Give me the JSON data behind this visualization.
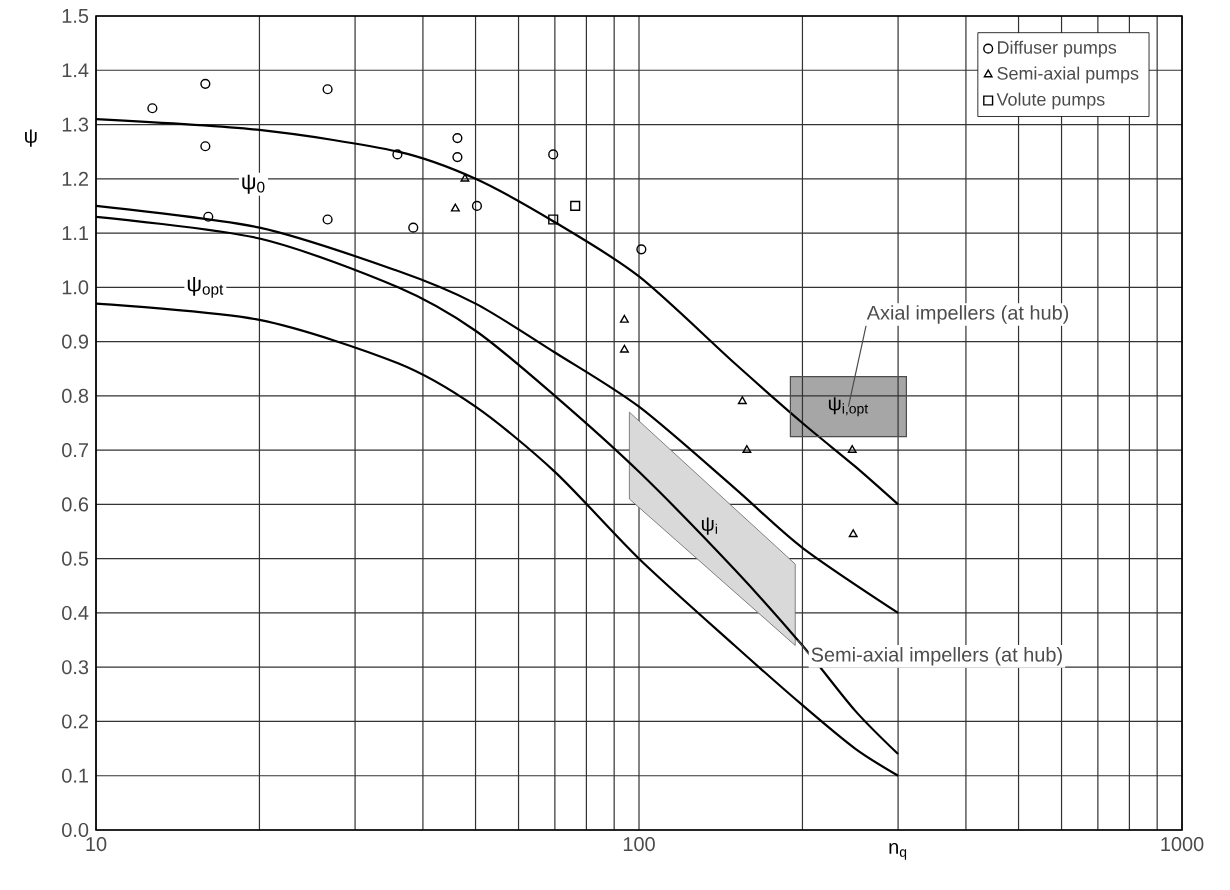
{
  "chart_data": {
    "type": "scatter",
    "xlabel": "n$_{q}$",
    "ylabel": "ψ",
    "log": "x",
    "grid": true,
    "legend": "top right",
    "xlim": [
      10,
      1000
    ],
    "ylim": [
      0,
      1.5
    ],
    "xticks": [
      10,
      {
        "value": 20,
        "label": null
      },
      {
        "value": 30,
        "label": null
      },
      {
        "value": 40,
        "label": null
      },
      {
        "value": 50,
        "label": null
      },
      {
        "value": 60,
        "label": null
      },
      {
        "value": 70,
        "label": null
      },
      {
        "value": 80,
        "label": null
      },
      {
        "value": 90,
        "label": null
      },
      100,
      {
        "value": 200,
        "label": null
      },
      {
        "value": 300,
        "label": null
      },
      {
        "value": 400,
        "label": null
      },
      {
        "value": 500,
        "label": null
      },
      {
        "value": 600,
        "label": null
      },
      {
        "value": 700,
        "label": null
      },
      {
        "value": 800,
        "label": null
      },
      {
        "value": 900,
        "label": null
      },
      1000
    ],
    "yticks": [
      {
        "value": 0,
        "label": "0.0"
      },
      0.1,
      0.2,
      0.3,
      0.4,
      0.5,
      0.6,
      0.7,
      0.8,
      0.9,
      {
        "value": 1,
        "label": "1.0"
      },
      1.1,
      1.2,
      1.3,
      1.4,
      1.5
    ],
    "series": [
      {
        "name": "Diffuser pumps",
        "marker": "circle",
        "color": "#000000",
        "x": [
          12.7,
          15.9,
          15.9,
          16.1,
          26.7,
          26.7,
          35.9,
          38.4,
          46.3,
          46.3,
          50.3,
          69.5,
          101
        ],
        "values": [
          1.33,
          1.375,
          1.26,
          1.13,
          1.365,
          1.125,
          1.245,
          1.11,
          1.275,
          1.24,
          1.15,
          1.245,
          1.07
        ]
      },
      {
        "name": "Semi-axial pumps",
        "marker": "triangle",
        "color": "#000000",
        "x": [
          47.8,
          45.9,
          94,
          94,
          155,
          158,
          247,
          248
        ],
        "values": [
          1.2,
          1.145,
          0.94,
          0.885,
          0.79,
          0.7,
          0.7,
          0.545
        ]
      },
      {
        "name": "Volute pumps",
        "marker": "square",
        "color": "#000000",
        "x": [
          69.5,
          76.3
        ],
        "values": [
          1.125,
          1.15
        ]
      },
      {
        "type": "line",
        "color": "#000000",
        "x": [
          10,
          20,
          36,
          50,
          70,
          100,
          150,
          200,
          250,
          300
        ],
        "values": [
          1.31,
          1.29,
          1.25,
          1.2,
          1.12,
          1.02,
          0.86,
          0.75,
          0.67,
          0.6
        ]
      },
      {
        "type": "line",
        "color": "#000000",
        "x": [
          10,
          20,
          36,
          50,
          70,
          100,
          150,
          200,
          300
        ],
        "values": [
          1.15,
          1.11,
          1.03,
          0.97,
          0.88,
          0.78,
          0.63,
          0.52,
          0.4
        ]
      },
      {
        "type": "line",
        "color": "#000000",
        "x": [
          10,
          20,
          36,
          50,
          70,
          100,
          150,
          200,
          250,
          300
        ],
        "values": [
          1.13,
          1.09,
          1.0,
          0.92,
          0.8,
          0.66,
          0.48,
          0.34,
          0.22,
          0.14
        ]
      },
      {
        "type": "line",
        "color": "#000000",
        "x": [
          10,
          20,
          36,
          50,
          70,
          100,
          150,
          200,
          250,
          300
        ],
        "values": [
          0.97,
          0.94,
          0.86,
          0.78,
          0.66,
          0.5,
          0.34,
          0.23,
          0.15,
          0.1
        ]
      },
      {
        "type": "area",
        "color": "#d9d9d9",
        "x": [
          96,
          194
        ],
        "values": [
          null,
          null
        ],
        "lower": [
          0.61,
          0.34
        ],
        "upper": [
          0.77,
          0.49
        ]
      }
    ],
    "annotations": [
      {
        "text": "ψ$_{0}$",
        "x": 19.5,
        "y": 1.19
      },
      {
        "text": "ψ$_{opt}$",
        "x": 15.9,
        "y": 1.0
      },
      "ψ$_{i}$",
      "ψ$_{i,opt}$",
      "Axial impellers (at hub)",
      "Semi-axial impellers (at hub)"
    ]
  }
}
